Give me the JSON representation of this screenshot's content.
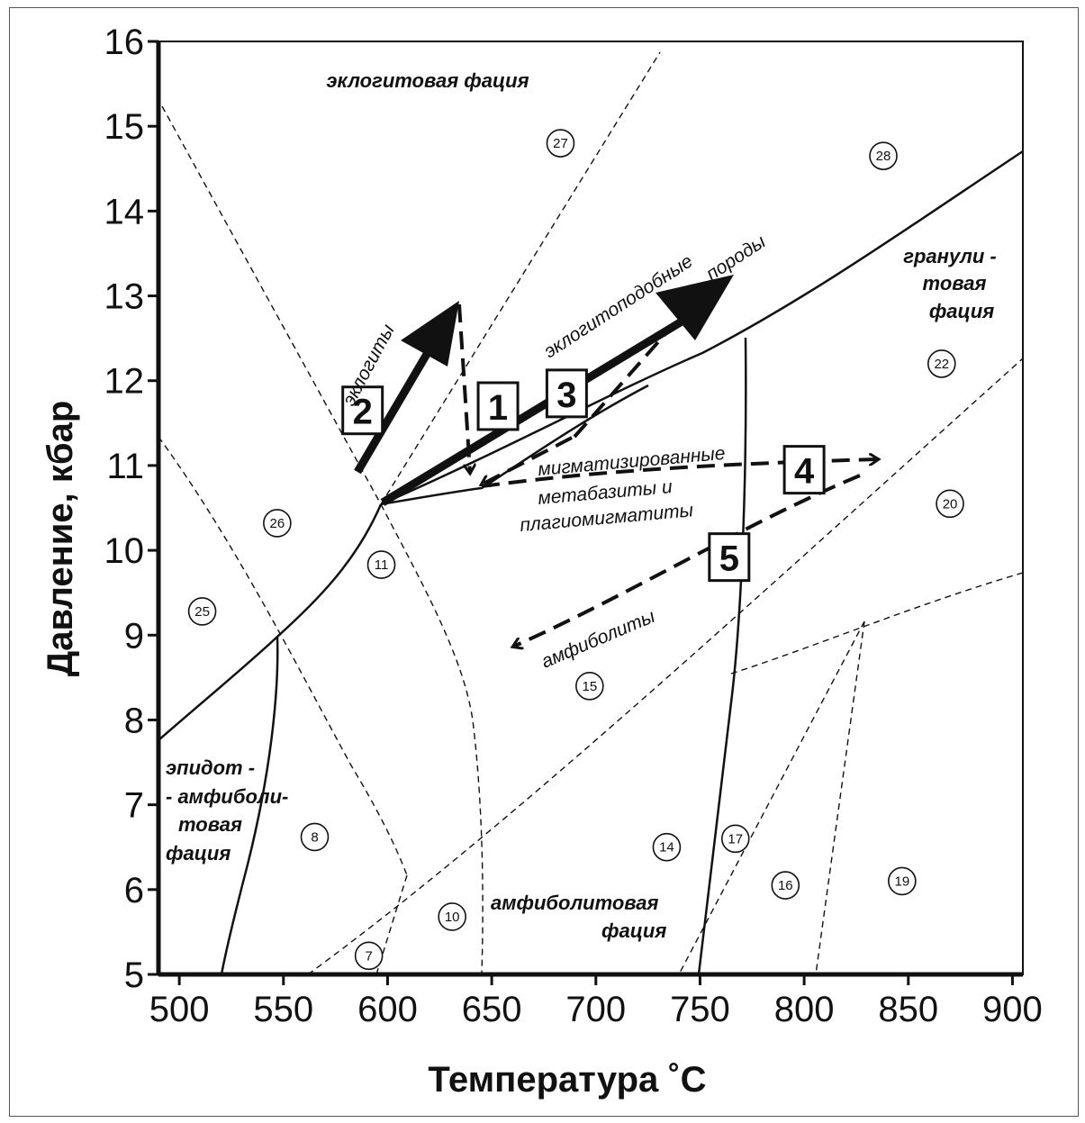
{
  "x_axis": {
    "title": "Температура ˚С",
    "range": [
      490,
      905
    ],
    "ticks": [
      500,
      550,
      600,
      650,
      700,
      750,
      800,
      850,
      900
    ]
  },
  "y_axis": {
    "title": "Давление, кбар",
    "range": [
      5,
      16
    ],
    "ticks": [
      5,
      6,
      7,
      8,
      9,
      10,
      11,
      12,
      13,
      14,
      15,
      16
    ]
  },
  "facies_labels": {
    "eclogite": "эклогитовая   фация",
    "granulite_1": "гранули -",
    "granulite_2": "товая",
    "granulite_3": "фация",
    "epidote_1": "эпидот -",
    "epidote_2": "- амфиболи-",
    "epidote_3": "товая",
    "epidote_4": "фация",
    "amphibolite_1": "амфиболитовая",
    "amphibolite_2": "фация"
  },
  "rock_labels": {
    "eclogites": "эклогиты",
    "eclogite_like_1": "эклогитоподобные",
    "eclogite_like_2": "породы",
    "migmatized_1": "мигматизированные",
    "migmatized_2": "метабазиты и",
    "migmatized_3": "плагиомигматиты",
    "amphibolites": "амфиболиты"
  },
  "reaction_numbers": [
    {
      "label": "27",
      "t": 683,
      "p": 14.8
    },
    {
      "label": "28",
      "t": 838,
      "p": 14.65
    },
    {
      "label": "22",
      "t": 866,
      "p": 12.2
    },
    {
      "label": "20",
      "t": 870,
      "p": 10.55
    },
    {
      "label": "26",
      "t": 547,
      "p": 10.32
    },
    {
      "label": "11",
      "t": 597,
      "p": 9.83
    },
    {
      "label": "25",
      "t": 511,
      "p": 9.28
    },
    {
      "label": "15",
      "t": 697,
      "p": 8.4
    },
    {
      "label": "8",
      "t": 565,
      "p": 6.62
    },
    {
      "label": "14",
      "t": 734,
      "p": 6.5
    },
    {
      "label": "17",
      "t": 767,
      "p": 6.6
    },
    {
      "label": "16",
      "t": 791,
      "p": 6.05
    },
    {
      "label": "19",
      "t": 847,
      "p": 6.1
    },
    {
      "label": "10",
      "t": 631,
      "p": 5.68
    },
    {
      "label": "7",
      "t": 591,
      "p": 5.22
    }
  ],
  "path_labels": [
    {
      "label": "1",
      "t": 653,
      "p": 11.7
    },
    {
      "label": "2",
      "t": 588,
      "p": 11.65
    },
    {
      "label": "3",
      "t": 686,
      "p": 11.85
    },
    {
      "label": "4",
      "t": 800,
      "p": 10.95
    },
    {
      "label": "5",
      "t": 764,
      "p": 9.92
    }
  ],
  "colors": {
    "ink": "#111111",
    "frame": "#555555",
    "background": "#ffffff"
  }
}
